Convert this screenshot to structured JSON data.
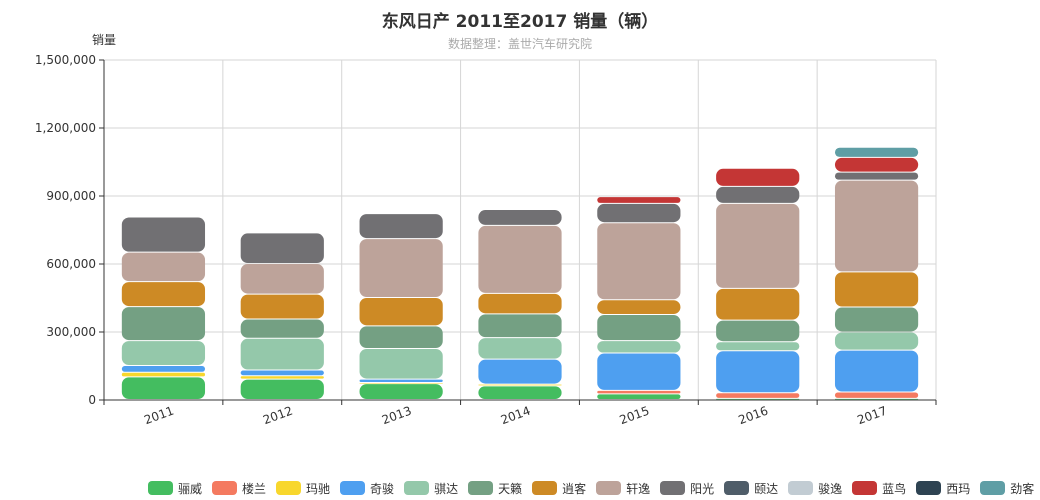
{
  "chart_data": {
    "type": "bar",
    "stacked": true,
    "title": "东风日产 2011至2017 销量（辆）",
    "subtitle": "数据整理：盖世汽车研究院",
    "ylabel": "销量",
    "xlabel": "",
    "ylim": [
      0,
      1500000
    ],
    "yticks": [
      0,
      300000,
      600000,
      900000,
      1200000,
      1500000
    ],
    "ytick_labels": [
      "0",
      "300,000",
      "600,000",
      "900,000",
      "1,200,000",
      "1,500,000"
    ],
    "categories": [
      "2011",
      "2012",
      "2013",
      "2014",
      "2015",
      "2016",
      "2017"
    ],
    "grid": true,
    "legend_position": "bottom-right",
    "series": [
      {
        "name": "骊威",
        "color": "#44bd60",
        "values": [
          100000,
          90000,
          70000,
          60000,
          25000,
          5000,
          5000
        ]
      },
      {
        "name": "楼兰",
        "color": "#f47a60",
        "values": [
          0,
          0,
          0,
          0,
          15000,
          25000,
          28000
        ]
      },
      {
        "name": "玛驰",
        "color": "#f8d72d",
        "values": [
          20000,
          15000,
          5000,
          8000,
          0,
          0,
          0
        ]
      },
      {
        "name": "奇骏",
        "color": "#4e9ff0",
        "values": [
          30000,
          25000,
          15000,
          110000,
          165000,
          185000,
          185000
        ]
      },
      {
        "name": "骐达",
        "color": "#94c8aa",
        "values": [
          110000,
          140000,
          135000,
          95000,
          55000,
          40000,
          80000
        ]
      },
      {
        "name": "天籁",
        "color": "#74a083",
        "values": [
          150000,
          85000,
          100000,
          105000,
          115000,
          95000,
          110000
        ]
      },
      {
        "name": "逍客",
        "color": "#cd8a25",
        "values": [
          110000,
          110000,
          125000,
          90000,
          65000,
          140000,
          155000
        ]
      },
      {
        "name": "轩逸",
        "color": "#bda39a",
        "values": [
          130000,
          135000,
          260000,
          300000,
          340000,
          375000,
          405000
        ]
      },
      {
        "name": "阳光",
        "color": "#717073",
        "values": [
          155000,
          135000,
          110000,
          70000,
          85000,
          75000,
          35000
        ]
      },
      {
        "name": "颐达",
        "color": "#4f5d69",
        "values": [
          0,
          0,
          0,
          0,
          0,
          0,
          0
        ]
      },
      {
        "name": "骏逸",
        "color": "#c2ccd3",
        "values": [
          0,
          0,
          0,
          0,
          0,
          0,
          0
        ]
      },
      {
        "name": "蓝鸟",
        "color": "#c43635",
        "values": [
          0,
          0,
          0,
          0,
          30000,
          80000,
          65000
        ]
      },
      {
        "name": "西玛",
        "color": "#2e4352",
        "values": [
          0,
          0,
          0,
          0,
          0,
          0,
          0
        ]
      },
      {
        "name": "劲客",
        "color": "#5f9ea5",
        "values": [
          0,
          0,
          0,
          0,
          0,
          0,
          45000
        ]
      }
    ]
  }
}
